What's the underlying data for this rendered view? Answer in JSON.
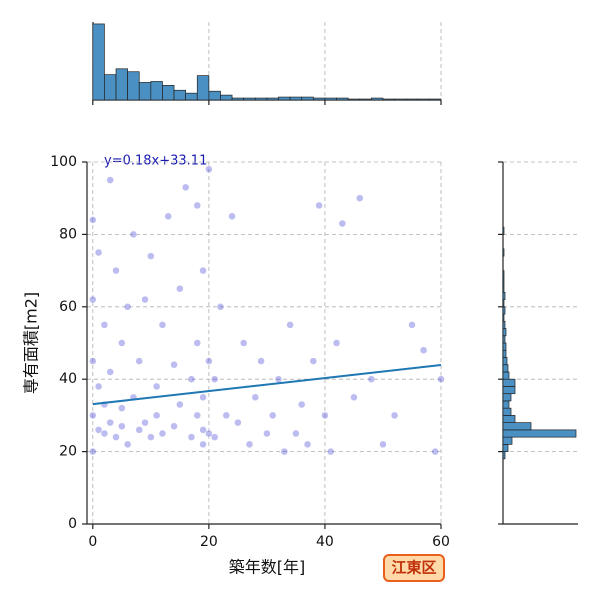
{
  "chart_data": {
    "type": "jointplot",
    "xlabel": "築年数[年]",
    "ylabel": "専有面積[m2]",
    "annotation": "y=0.18x+33.11",
    "badge": "江東区",
    "xlim": [
      -1,
      60
    ],
    "ylim": [
      0,
      100
    ],
    "xticks": [
      0,
      20,
      40,
      60
    ],
    "yticks": [
      0,
      20,
      40,
      60,
      80,
      100
    ],
    "grid": true,
    "point_color": "#2222cc",
    "line_color": "#1f77b4",
    "hist_color": "#4a90c2",
    "regression": {
      "slope": 0.18,
      "intercept": 33.11
    },
    "x": [
      0,
      0,
      0,
      0,
      0,
      1,
      1,
      1,
      2,
      2,
      2,
      3,
      3,
      3,
      4,
      4,
      5,
      5,
      5,
      6,
      6,
      7,
      7,
      8,
      8,
      9,
      9,
      10,
      10,
      11,
      11,
      12,
      12,
      13,
      14,
      14,
      15,
      15,
      16,
      17,
      17,
      18,
      18,
      18,
      19,
      19,
      19,
      19,
      20,
      20,
      20,
      21,
      21,
      22,
      23,
      24,
      25,
      26,
      27,
      28,
      29,
      30,
      31,
      32,
      33,
      34,
      35,
      36,
      37,
      38,
      39,
      40,
      41,
      42,
      43,
      45,
      46,
      48,
      50,
      52,
      55,
      57,
      59,
      60
    ],
    "y": [
      84,
      62,
      45,
      30,
      20,
      75,
      38,
      26,
      55,
      33,
      25,
      42,
      28,
      95,
      70,
      24,
      50,
      32,
      27,
      60,
      22,
      35,
      80,
      45,
      26,
      28,
      62,
      74,
      24,
      38,
      30,
      55,
      25,
      85,
      27,
      44,
      33,
      65,
      93,
      24,
      40,
      30,
      50,
      88,
      22,
      70,
      35,
      26,
      98,
      25,
      45,
      40,
      24,
      60,
      30,
      85,
      28,
      50,
      22,
      35,
      45,
      25,
      30,
      40,
      20,
      55,
      25,
      33,
      22,
      45,
      88,
      30,
      20,
      50,
      83,
      35,
      90,
      40,
      22,
      30,
      55,
      48,
      20,
      40
    ],
    "top_hist": {
      "bins": [
        0,
        2,
        4,
        6,
        8,
        10,
        12,
        14,
        16,
        18,
        20,
        22,
        24,
        26,
        28,
        30,
        32,
        34,
        36,
        38,
        40,
        42,
        44,
        46,
        48,
        50,
        52,
        54,
        56,
        58,
        60
      ],
      "counts": [
        78,
        26,
        32,
        29,
        18,
        19,
        15,
        10,
        7,
        25,
        9,
        5,
        2,
        2,
        2,
        2,
        3,
        3,
        3,
        2,
        2,
        2,
        1,
        1,
        2,
        1,
        1,
        1,
        1,
        1
      ],
      "ylim": [
        0,
        80
      ]
    },
    "right_hist": {
      "bins": [
        0,
        2,
        4,
        6,
        8,
        10,
        12,
        14,
        16,
        18,
        20,
        22,
        24,
        26,
        28,
        30,
        32,
        34,
        36,
        38,
        40,
        42,
        44,
        46,
        48,
        50,
        52,
        54,
        56,
        58,
        60,
        62,
        64,
        66,
        68,
        70,
        72,
        74,
        76,
        78,
        80,
        82,
        84,
        86,
        88,
        90,
        92,
        94,
        96,
        98,
        100
      ],
      "counts": [
        0,
        0,
        0,
        0,
        0,
        0,
        0,
        0,
        0,
        2,
        5,
        9,
        73,
        28,
        12,
        8,
        6,
        8,
        12,
        12,
        6,
        5,
        4,
        3,
        3,
        2,
        3,
        2,
        1,
        2,
        1,
        2,
        1,
        1,
        1,
        0,
        0,
        1,
        0,
        0,
        1,
        0,
        0,
        0,
        0,
        0,
        0,
        0,
        0,
        0
      ],
      "xlim": [
        0,
        75
      ]
    }
  }
}
